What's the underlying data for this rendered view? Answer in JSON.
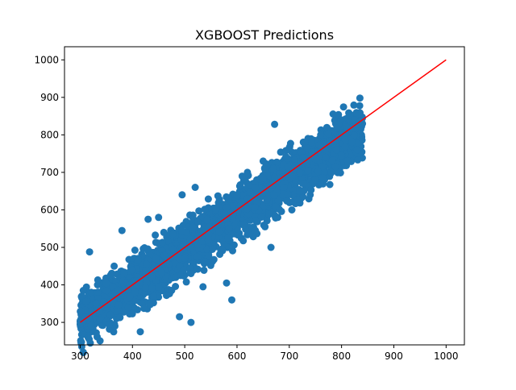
{
  "chart_data": {
    "type": "scatter",
    "title": "XGBOOST Predictions",
    "xlabel": "",
    "ylabel": "",
    "xlim": [
      270,
      1035
    ],
    "ylim": [
      240,
      1035
    ],
    "x_ticks": [
      300,
      400,
      500,
      600,
      700,
      800,
      900,
      1000
    ],
    "y_ticks": [
      300,
      400,
      500,
      600,
      700,
      800,
      900,
      1000
    ],
    "grid": false,
    "series": [
      {
        "type": "scatter",
        "color": "#1f77b4",
        "cloud": {
          "x_range": [
            300,
            840
          ],
          "slope": 0.95,
          "intercept": 20,
          "spread": 35
        },
        "points": [
          [
            300,
            295
          ],
          [
            301,
            330
          ],
          [
            306,
            385
          ],
          [
            318,
            488
          ],
          [
            322,
            330
          ],
          [
            330,
            350
          ],
          [
            345,
            355
          ],
          [
            358,
            320
          ],
          [
            365,
            450
          ],
          [
            380,
            545
          ],
          [
            392,
            340
          ],
          [
            395,
            400
          ],
          [
            405,
            380
          ],
          [
            410,
            465
          ],
          [
            415,
            275
          ],
          [
            430,
            575
          ],
          [
            440,
            370
          ],
          [
            450,
            580
          ],
          [
            460,
            540
          ],
          [
            475,
            385
          ],
          [
            490,
            315
          ],
          [
            495,
            640
          ],
          [
            512,
            300
          ],
          [
            520,
            660
          ],
          [
            535,
            395
          ],
          [
            545,
            520
          ],
          [
            560,
            560
          ],
          [
            580,
            405
          ],
          [
            585,
            550
          ],
          [
            590,
            360
          ],
          [
            600,
            640
          ],
          [
            610,
            690
          ],
          [
            612,
            560
          ],
          [
            620,
            700
          ],
          [
            635,
            545
          ],
          [
            650,
            730
          ],
          [
            665,
            500
          ],
          [
            670,
            710
          ],
          [
            672,
            828
          ],
          [
            678,
            580
          ],
          [
            690,
            660
          ],
          [
            700,
            765
          ],
          [
            705,
            600
          ],
          [
            720,
            700
          ],
          [
            730,
            780
          ],
          [
            740,
            640
          ],
          [
            750,
            680
          ],
          [
            760,
            800
          ],
          [
            770,
            740
          ],
          [
            780,
            700
          ],
          [
            790,
            760
          ],
          [
            800,
            745
          ],
          [
            810,
            820
          ],
          [
            820,
            780
          ],
          [
            825,
            840
          ],
          [
            830,
            760
          ],
          [
            835,
            835
          ],
          [
            840,
            830
          ]
        ]
      },
      {
        "type": "line",
        "color": "#ff0000",
        "points": [
          [
            300,
            300
          ],
          [
            1000,
            1000
          ]
        ]
      }
    ]
  }
}
